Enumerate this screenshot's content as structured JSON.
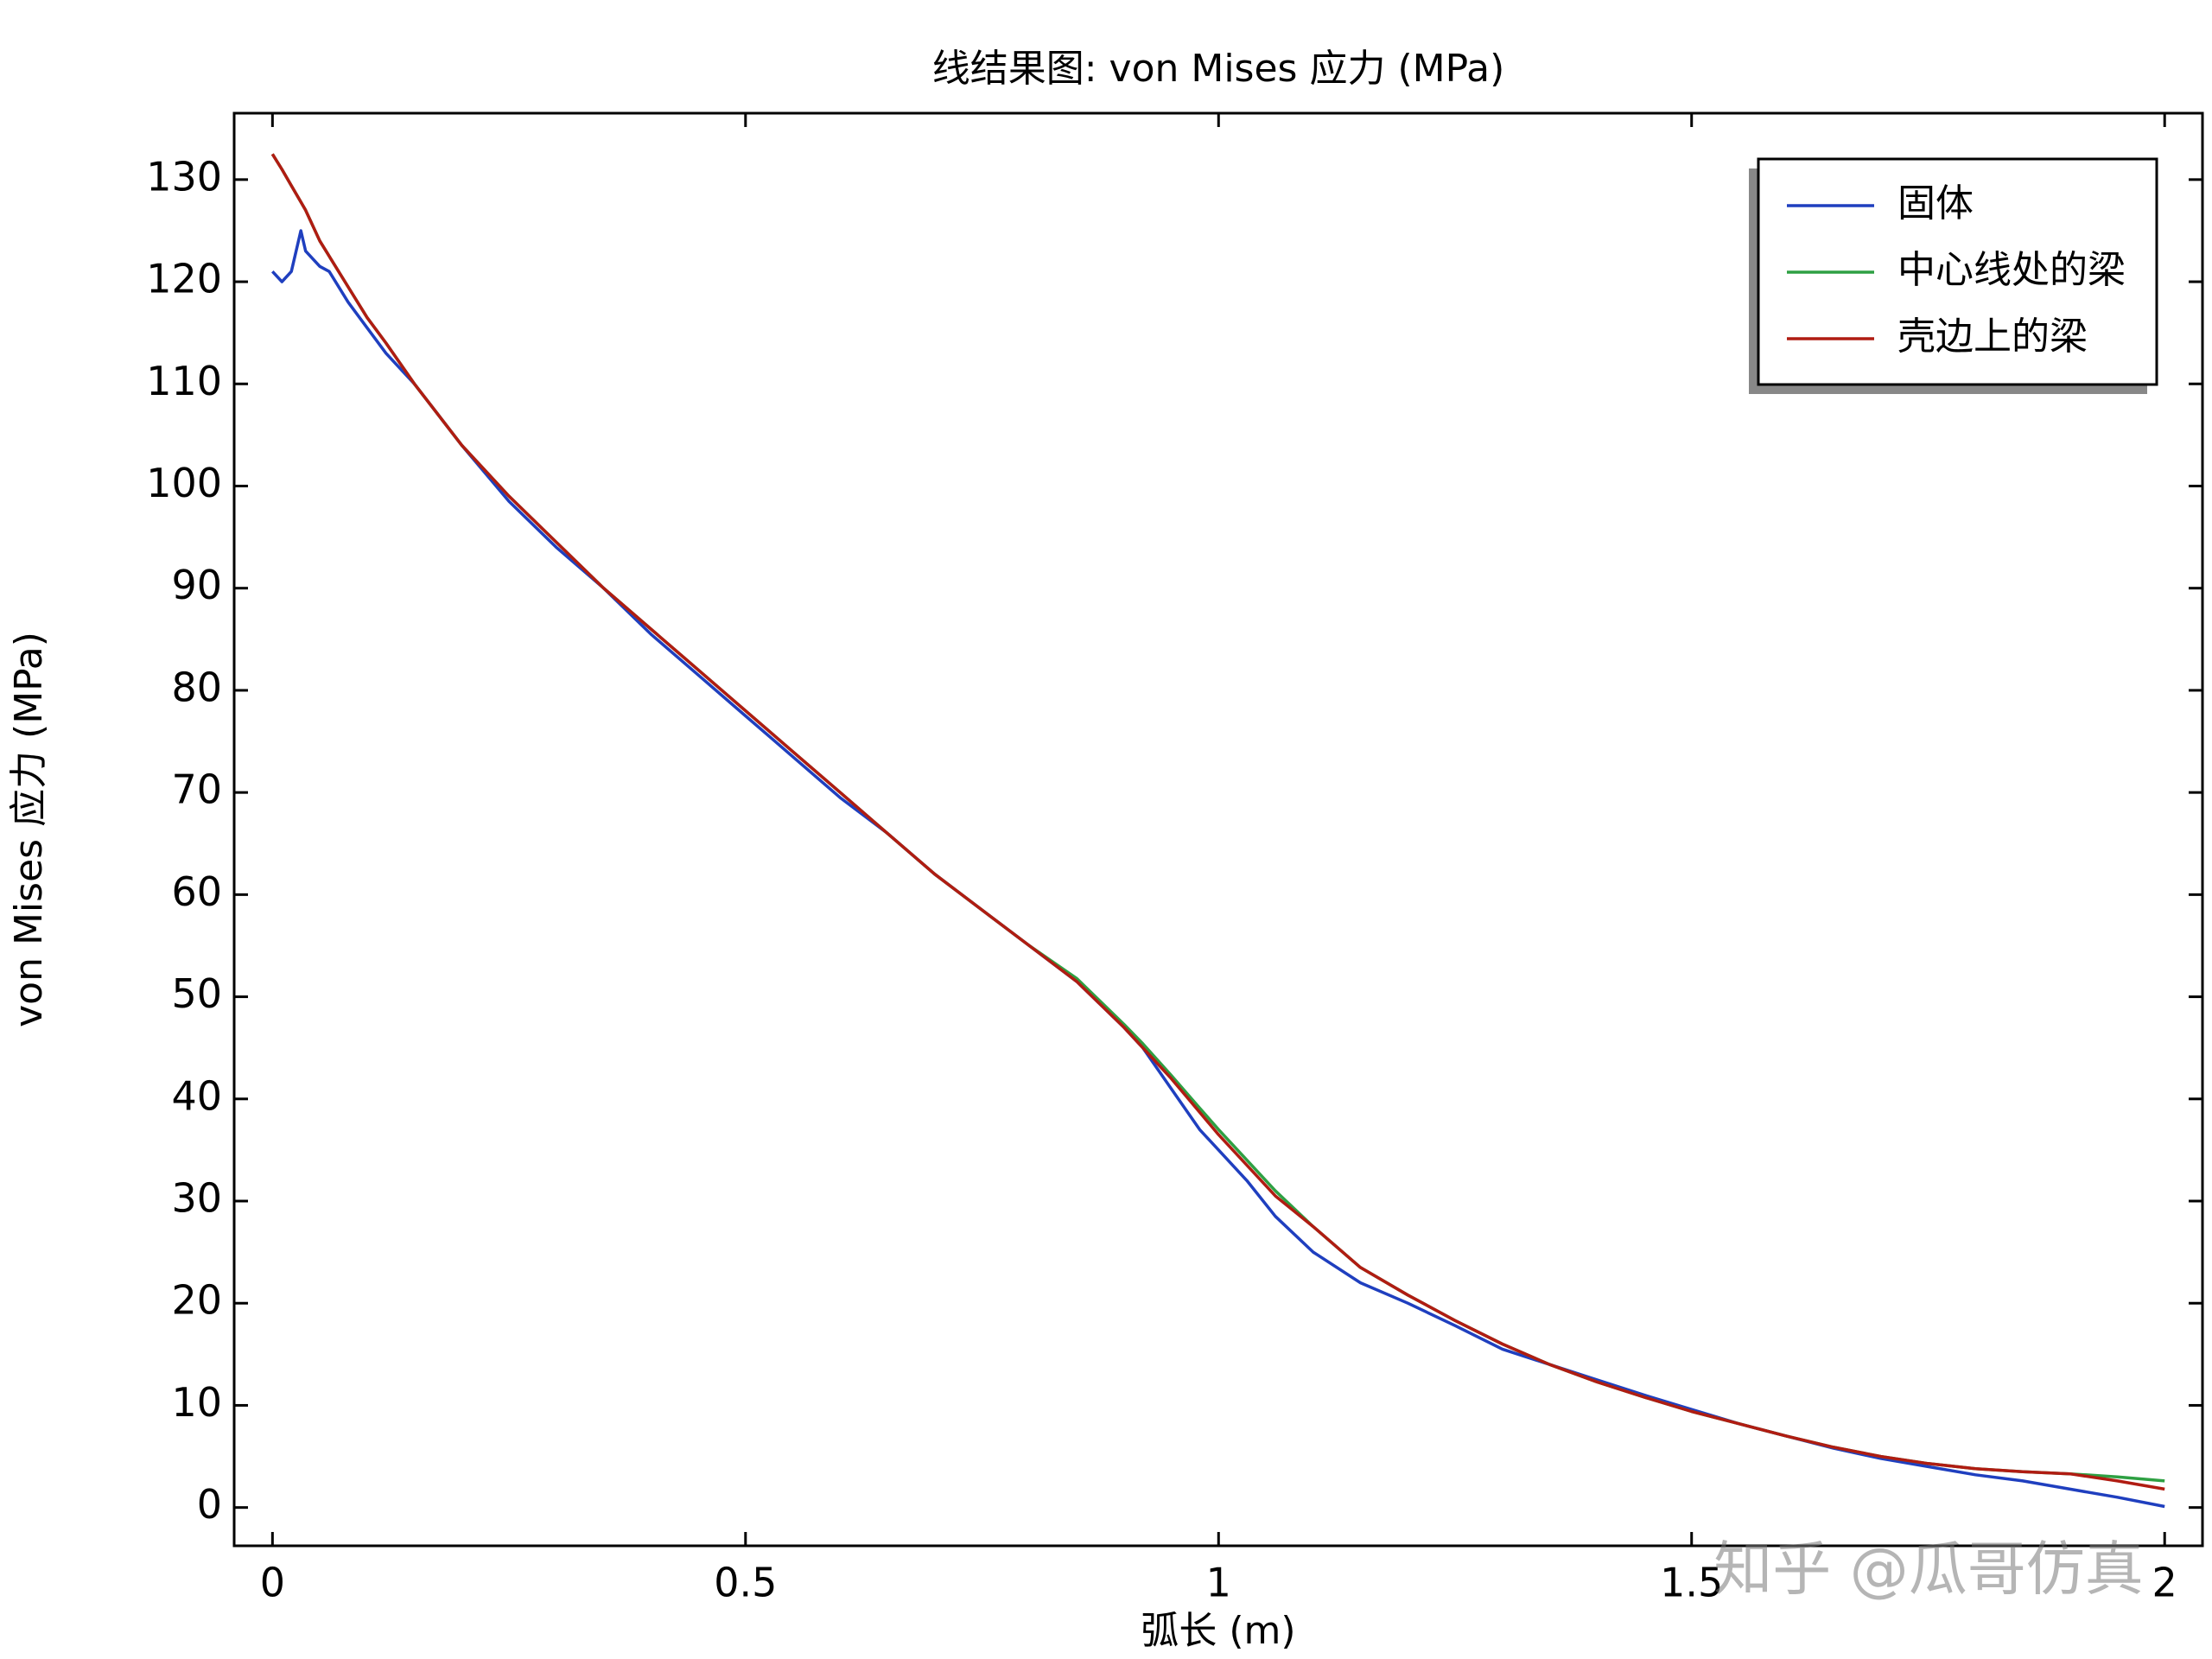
{
  "chart_data": {
    "type": "line",
    "title": "线结果图: von Mises 应力 (MPa)",
    "x_label": "弧长 (m)",
    "y_label": "von Mises 应力 (MPa)",
    "watermark": "知乎 @瓜哥仿真",
    "x": [
      0,
      0.01,
      0.02,
      0.03,
      0.035,
      0.05,
      0.06,
      0.08,
      0.1,
      0.12,
      0.15,
      0.2,
      0.25,
      0.3,
      0.35,
      0.4,
      0.45,
      0.5,
      0.55,
      0.6,
      0.65,
      0.7,
      0.75,
      0.8,
      0.85,
      0.9,
      0.92,
      0.95,
      0.98,
      1.0,
      1.03,
      1.06,
      1.1,
      1.15,
      1.2,
      1.25,
      1.3,
      1.35,
      1.4,
      1.45,
      1.5,
      1.55,
      1.6,
      1.65,
      1.7,
      1.75,
      1.8,
      1.85,
      1.9,
      1.95,
      2.0
    ],
    "series": [
      {
        "name": "固体",
        "color": "#1f3fbf",
        "values": [
          121,
          120,
          121,
          125,
          123,
          121.5,
          121,
          118,
          115.5,
          113,
          110,
          104,
          98.5,
          94,
          90,
          85.5,
          81.5,
          77.5,
          73.5,
          69.5,
          66,
          62,
          58.5,
          55,
          51.5,
          47,
          45,
          41,
          37,
          35,
          32,
          28.5,
          25,
          22,
          20,
          17.8,
          15.5,
          14,
          12.5,
          11,
          9.6,
          8.2,
          7,
          5.8,
          4.8,
          4,
          3.2,
          2.6,
          1.8,
          1,
          0.1
        ]
      },
      {
        "name": "中心线处的梁",
        "color": "#2ea043",
        "values": [
          132.5,
          131,
          129.4,
          127.8,
          127,
          124,
          122.5,
          119.5,
          116.5,
          114,
          110,
          104,
          99,
          94.5,
          90,
          86,
          82,
          78,
          74,
          70,
          66,
          62,
          58.5,
          55,
          51.8,
          47.3,
          45.4,
          42.3,
          39.1,
          37,
          34,
          31,
          27.5,
          23.5,
          20.8,
          18.3,
          16,
          14,
          12.3,
          10.8,
          9.4,
          8.2,
          7,
          5.9,
          5,
          4.3,
          3.8,
          3.5,
          3.3,
          3,
          2.6
        ]
      },
      {
        "name": "壳边上的梁",
        "color": "#b01c12",
        "values": [
          132.5,
          131,
          129.4,
          127.8,
          127,
          124,
          122.5,
          119.5,
          116.5,
          114,
          110,
          104,
          99,
          94.5,
          90,
          86,
          82,
          78,
          74,
          70,
          66,
          62,
          58.5,
          55,
          51.5,
          47,
          45,
          42,
          38.7,
          36.5,
          33.5,
          30.5,
          27.5,
          23.5,
          20.8,
          18.3,
          16,
          14,
          12.3,
          10.8,
          9.4,
          8.2,
          7,
          5.9,
          5,
          4.3,
          3.8,
          3.5,
          3.3,
          2.6,
          1.8
        ]
      }
    ],
    "xlim": [
      -0.0405,
      2.04
    ],
    "ylim": [
      -3.75,
      136.5
    ],
    "xticks": [
      0,
      0.5,
      1,
      1.5,
      2
    ],
    "yticks": [
      0,
      10,
      20,
      30,
      40,
      50,
      60,
      70,
      80,
      90,
      100,
      110,
      120,
      130
    ],
    "legend": "upper-right"
  }
}
